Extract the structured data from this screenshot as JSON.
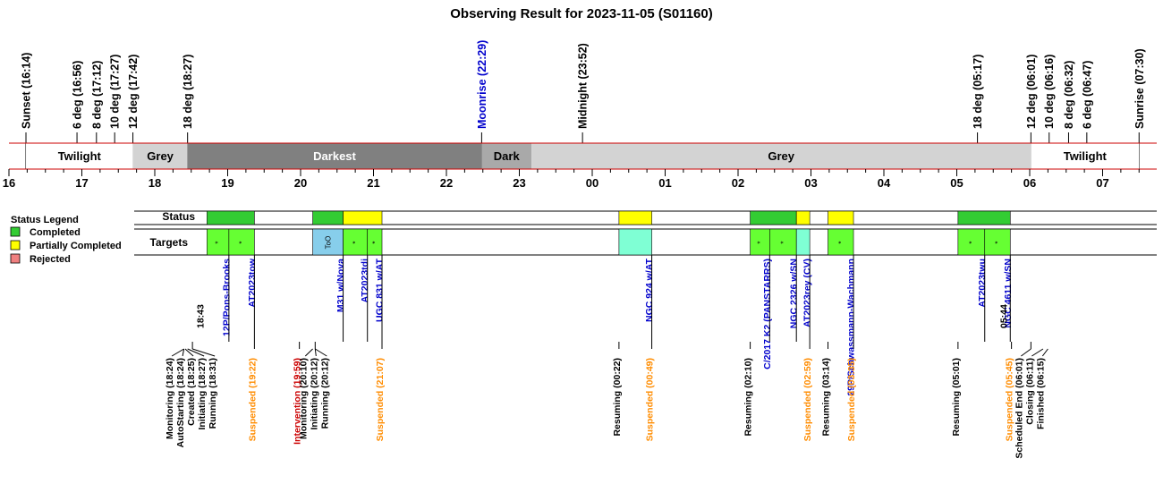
{
  "chart_data": {
    "type": "timeline",
    "title": "Observing Result for 2023-11-05 (S01160)",
    "x_range": [
      "16:00",
      "07:40"
    ],
    "hour_ticks": [
      "16",
      "17",
      "18",
      "19",
      "20",
      "21",
      "22",
      "23",
      "00",
      "01",
      "02",
      "03",
      "04",
      "05",
      "06",
      "07"
    ],
    "top_markers": [
      {
        "label": "Sunset (16:14)",
        "time": "16:14",
        "color": "#000000"
      },
      {
        "label": "6 deg (16:56)",
        "time": "16:56",
        "color": "#000000"
      },
      {
        "label": "8 deg (17:12)",
        "time": "17:12",
        "color": "#000000"
      },
      {
        "label": "10 deg (17:27)",
        "time": "17:27",
        "color": "#000000"
      },
      {
        "label": "12 deg (17:42)",
        "time": "17:42",
        "color": "#000000"
      },
      {
        "label": "18 deg (18:27)",
        "time": "18:27",
        "color": "#000000"
      },
      {
        "label": "Moonrise (22:29)",
        "time": "22:29",
        "color": "#0000cc"
      },
      {
        "label": "Midnight (23:52)",
        "time": "23:52",
        "color": "#000000"
      },
      {
        "label": "18 deg (05:17)",
        "time": "05:17",
        "color": "#000000"
      },
      {
        "label": "12 deg (06:01)",
        "time": "06:01",
        "color": "#000000"
      },
      {
        "label": "10 deg (06:16)",
        "time": "06:16",
        "color": "#000000"
      },
      {
        "label": "8 deg (06:32)",
        "time": "06:32",
        "color": "#000000"
      },
      {
        "label": "6 deg (06:47)",
        "time": "06:47",
        "color": "#000000"
      },
      {
        "label": "Sunrise (07:30)",
        "time": "07:30",
        "color": "#000000"
      }
    ],
    "sky_bands": [
      {
        "label": "Twilight",
        "start": "16:14",
        "end": "17:42",
        "color": "#ffffff",
        "text_color": "#000000"
      },
      {
        "label": "Grey",
        "start": "17:42",
        "end": "18:27",
        "color": "#d3d3d3",
        "text_color": "#000000"
      },
      {
        "label": "Darkest",
        "start": "18:27",
        "end": "22:29",
        "color": "#808080",
        "text_color": "#ffffff"
      },
      {
        "label": "Dark",
        "start": "22:29",
        "end": "23:10",
        "color": "#a9a9a9",
        "text_color": "#000000"
      },
      {
        "label": "Grey",
        "start": "23:10",
        "end": "06:01",
        "color": "#d3d3d3",
        "text_color": "#000000"
      },
      {
        "label": "Twilight",
        "start": "06:01",
        "end": "07:30",
        "color": "#ffffff",
        "text_color": "#000000"
      }
    ],
    "row_labels": {
      "status": "Status",
      "targets": "Targets"
    },
    "status_bars": [
      {
        "start": "18:43",
        "end": "19:22",
        "status": "Completed"
      },
      {
        "start": "20:10",
        "end": "20:35",
        "status": "Completed"
      },
      {
        "start": "20:35",
        "end": "21:07",
        "status": "Partially Completed"
      },
      {
        "start": "00:22",
        "end": "00:49",
        "status": "Partially Completed"
      },
      {
        "start": "02:10",
        "end": "02:48",
        "status": "Completed"
      },
      {
        "start": "02:48",
        "end": "02:59",
        "status": "Partially Completed"
      },
      {
        "start": "03:14",
        "end": "03:35",
        "status": "Partially Completed"
      },
      {
        "start": "05:01",
        "end": "05:44",
        "status": "Completed"
      }
    ],
    "target_blocks": [
      {
        "start": "18:43",
        "end": "19:01",
        "name": "12P/Pons-Brooks",
        "color": "#66ff33",
        "mark": "*"
      },
      {
        "start": "19:01",
        "end": "19:22",
        "name": "AT2023tow",
        "color": "#66ff33",
        "mark": "*"
      },
      {
        "start": "20:10",
        "end": "20:35",
        "name": "M31 w/Nova",
        "color": "#87ceeb",
        "mark": "ToO"
      },
      {
        "start": "20:35",
        "end": "20:55",
        "name": "AT2023tdi",
        "color": "#66ff33",
        "mark": "*"
      },
      {
        "start": "20:55",
        "end": "21:07",
        "name": "UGC 831 w/AT",
        "color": "#66ff33",
        "mark": "*"
      },
      {
        "start": "00:22",
        "end": "00:49",
        "name": "NGC 924 w/AT",
        "color": "#7fffd4",
        "mark": ""
      },
      {
        "start": "02:10",
        "end": "02:26",
        "name": "C/2017 K2 (PANSTARRS)",
        "color": "#66ff33",
        "mark": "*"
      },
      {
        "start": "02:26",
        "end": "02:48",
        "name": "NGC 2326 w/SN",
        "color": "#66ff33",
        "mark": "*"
      },
      {
        "start": "02:48",
        "end": "02:59",
        "name": "AT2023rey (CV)",
        "color": "#7fffd4",
        "mark": ""
      },
      {
        "start": "03:14",
        "end": "03:35",
        "name": "29P/Schwassmann-Wachmann",
        "color": "#66ff33",
        "mark": "*"
      },
      {
        "start": "05:01",
        "end": "05:23",
        "name": "AT2023twu",
        "color": "#66ff33",
        "mark": "*"
      },
      {
        "start": "05:23",
        "end": "05:44",
        "name": "NGC 4611 w/SN",
        "color": "#66ff33",
        "mark": "*"
      }
    ],
    "time_annotations": [
      {
        "label": "18:43",
        "time": "18:43"
      },
      {
        "label": "05:44",
        "time": "05:44"
      }
    ],
    "event_groups": [
      {
        "anchor": "18:31",
        "events": [
          {
            "label": "Monitoring (18:24)",
            "time": "18:24",
            "color": "#000000"
          },
          {
            "label": "AutoStarting (18:24)",
            "time": "18:24",
            "color": "#000000"
          },
          {
            "label": "Created (18:25)",
            "time": "18:25",
            "color": "#000000"
          },
          {
            "label": "Initiating (18:27)",
            "time": "18:27",
            "color": "#000000"
          },
          {
            "label": "Running (18:31)",
            "time": "18:31",
            "color": "#000000"
          }
        ]
      },
      {
        "anchor": "19:22",
        "events": [
          {
            "label": "Suspended (19:22)",
            "time": "19:22",
            "color": "#ff8c00"
          }
        ]
      },
      {
        "anchor": "19:59",
        "events": [
          {
            "label": "Intervention (19:59)",
            "time": "19:59",
            "color": "#cc0000"
          }
        ]
      },
      {
        "anchor": "20:12",
        "events": [
          {
            "label": "Monitoring (20:10)",
            "time": "20:10",
            "color": "#000000"
          },
          {
            "label": "Initiating (20:12)",
            "time": "20:12",
            "color": "#000000"
          },
          {
            "label": "Running (20:12)",
            "time": "20:12",
            "color": "#000000"
          }
        ]
      },
      {
        "anchor": "21:07",
        "events": [
          {
            "label": "Suspended (21:07)",
            "time": "21:07",
            "color": "#ff8c00"
          }
        ]
      },
      {
        "anchor": "00:22",
        "events": [
          {
            "label": "Resuming (00:22)",
            "time": "00:22",
            "color": "#000000"
          }
        ]
      },
      {
        "anchor": "00:49",
        "events": [
          {
            "label": "Suspended (00:49)",
            "time": "00:49",
            "color": "#ff8c00"
          }
        ]
      },
      {
        "anchor": "02:10",
        "events": [
          {
            "label": "Resuming (02:10)",
            "time": "02:10",
            "color": "#000000"
          }
        ]
      },
      {
        "anchor": "02:59",
        "events": [
          {
            "label": "Suspended (02:59)",
            "time": "02:59",
            "color": "#ff8c00"
          }
        ]
      },
      {
        "anchor": "03:14",
        "events": [
          {
            "label": "Resuming (03:14)",
            "time": "03:14",
            "color": "#000000"
          }
        ]
      },
      {
        "anchor": "03:35",
        "events": [
          {
            "label": "Suspended (03:35)",
            "time": "03:35",
            "color": "#ff8c00"
          }
        ]
      },
      {
        "anchor": "05:01",
        "events": [
          {
            "label": "Resuming (05:01)",
            "time": "05:01",
            "color": "#000000"
          }
        ]
      },
      {
        "anchor": "05:45",
        "events": [
          {
            "label": "Suspended (05:45)",
            "time": "05:45",
            "color": "#ff8c00"
          }
        ]
      },
      {
        "anchor": "06:01",
        "events": [
          {
            "label": "Scheduled End (06:01)",
            "time": "06:01",
            "color": "#000000"
          },
          {
            "label": "Closing (06:11)",
            "time": "06:11",
            "color": "#000000"
          },
          {
            "label": "Finished (06:15)",
            "time": "06:15",
            "color": "#000000"
          }
        ]
      }
    ],
    "legend": {
      "title": "Status Legend",
      "items": [
        {
          "label": "Completed",
          "color": "#33cc33"
        },
        {
          "label": "Partially Completed",
          "color": "#ffff00"
        },
        {
          "label": "Rejected",
          "color": "#f08080"
        }
      ]
    },
    "status_colors": {
      "Completed": "#33cc33",
      "Partially Completed": "#ffff00",
      "Rejected": "#f08080"
    }
  }
}
